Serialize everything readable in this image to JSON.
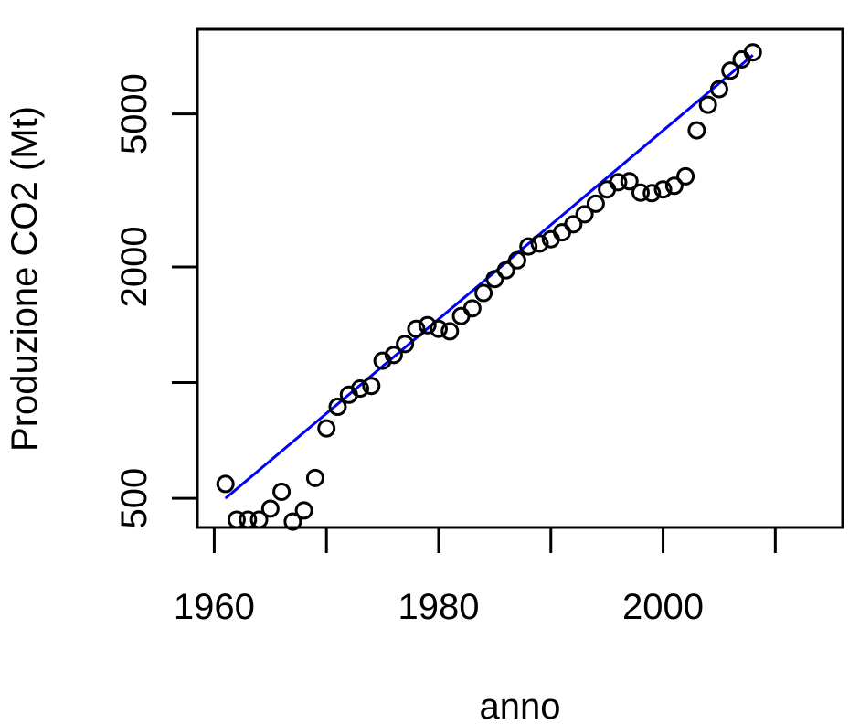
{
  "chart_data": {
    "type": "scatter",
    "title": "",
    "xlabel": "anno",
    "ylabel": "Produzione CO2 (Mt)",
    "y_scale": "log",
    "xlim": [
      1958.5,
      2016
    ],
    "ylim": [
      420,
      8300
    ],
    "x_ticks": [
      1960,
      1970,
      1980,
      1990,
      2000,
      2010
    ],
    "x_tick_labels": [
      "1960",
      "",
      "1980",
      "",
      "2000",
      ""
    ],
    "y_ticks": [
      500,
      1000,
      2000,
      5000
    ],
    "y_tick_labels": [
      "500",
      "",
      "2000",
      "5000"
    ],
    "grid": false,
    "legend": "none",
    "series": [
      {
        "style": "points",
        "color": "#000000",
        "x": [
          1961,
          1962,
          1963,
          1964,
          1965,
          1966,
          1967,
          1968,
          1969,
          1970,
          1971,
          1972,
          1973,
          1974,
          1975,
          1976,
          1977,
          1978,
          1979,
          1980,
          1981,
          1982,
          1983,
          1984,
          1985,
          1986,
          1987,
          1988,
          1989,
          1990,
          1991,
          1992,
          1993,
          1994,
          1995,
          1996,
          1997,
          1998,
          1999,
          2000,
          2001,
          2002,
          2003,
          2004,
          2005,
          2006,
          2007,
          2008
        ],
        "y": [
          545,
          440,
          440,
          440,
          470,
          520,
          435,
          465,
          565,
          760,
          865,
          930,
          965,
          980,
          1140,
          1180,
          1260,
          1380,
          1410,
          1380,
          1360,
          1490,
          1560,
          1710,
          1860,
          1960,
          2080,
          2260,
          2300,
          2360,
          2460,
          2580,
          2740,
          2920,
          3180,
          3320,
          3340,
          3120,
          3110,
          3180,
          3250,
          3440,
          4530,
          5280,
          5800,
          6480,
          6930,
          7230
        ]
      },
      {
        "style": "line",
        "color": "#0000ff",
        "x": [
          1961,
          2008
        ],
        "y": [
          500,
          7110
        ]
      }
    ]
  }
}
